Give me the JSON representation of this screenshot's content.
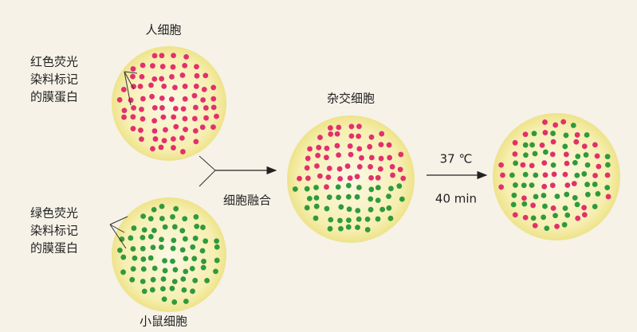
{
  "human_cell": {
    "title": "人细胞",
    "label_lines": [
      "红色荧光",
      "染料标记",
      "的膜蛋白"
    ]
  },
  "mouse_cell": {
    "title": "小鼠细胞",
    "label_lines": [
      "绿色荧光",
      "染料标记",
      "的膜蛋白"
    ]
  },
  "fusion": {
    "label": "细胞融合"
  },
  "hybrid_cell": {
    "title": "杂交细胞"
  },
  "incubation": {
    "temperature": "37 ℃",
    "time": "40 min"
  }
}
